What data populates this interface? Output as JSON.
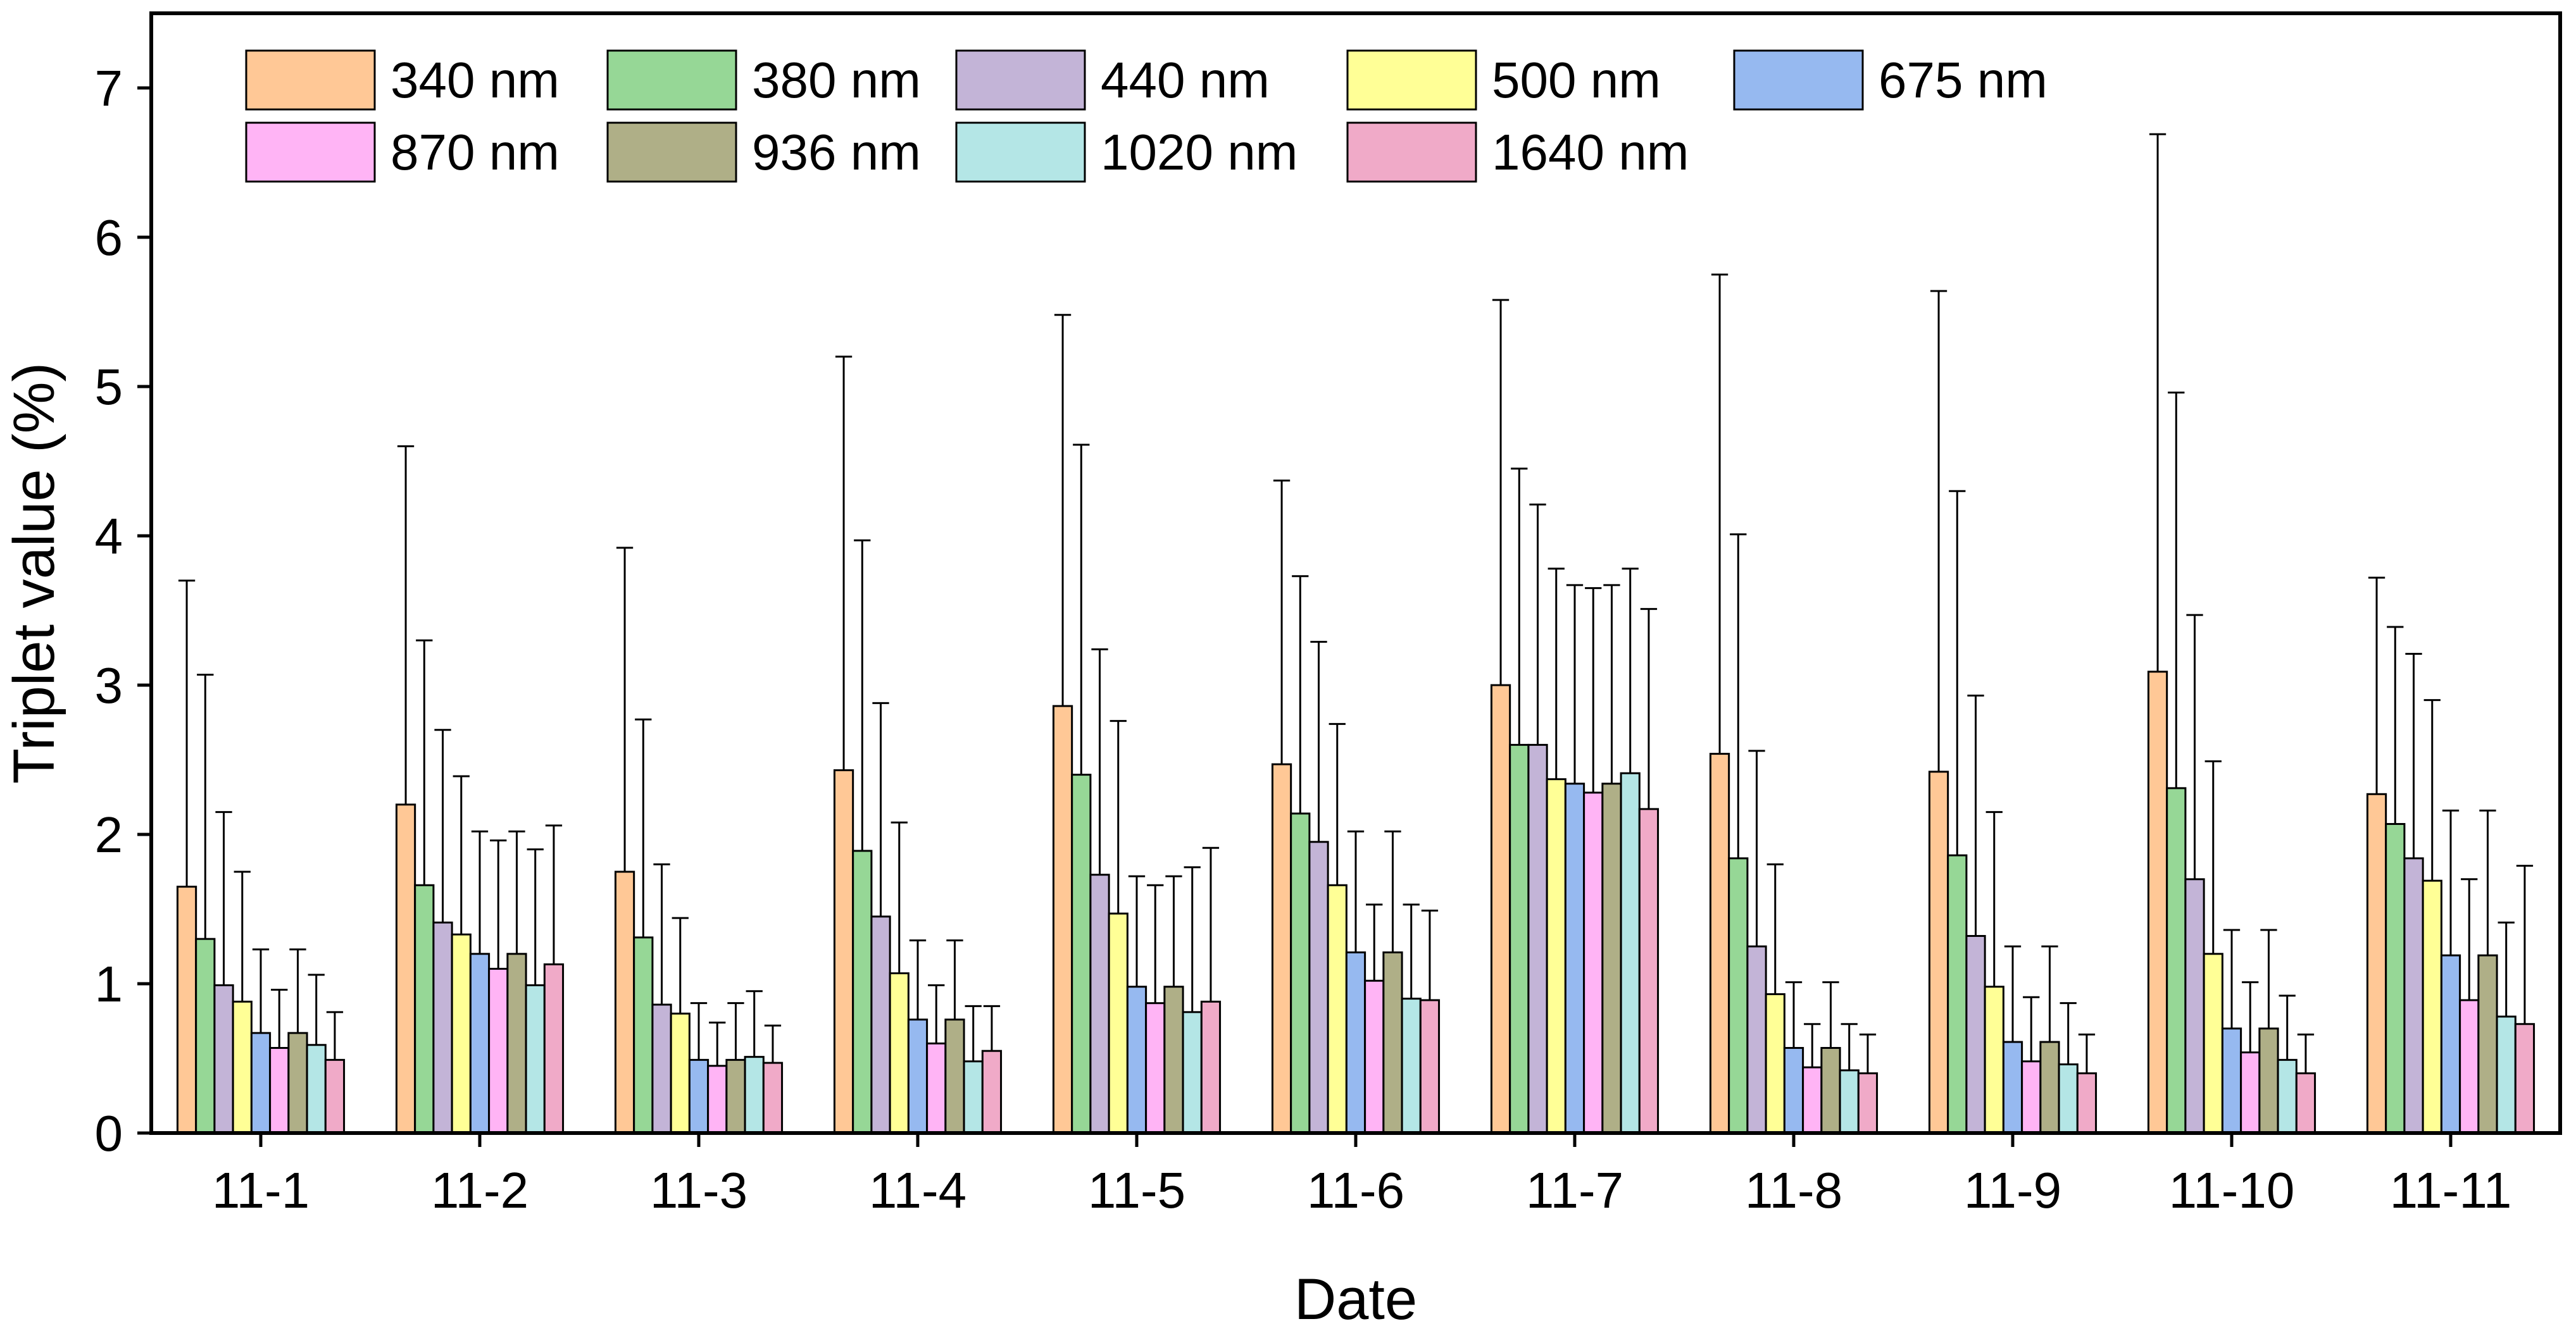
{
  "chart_data": {
    "type": "bar",
    "title": "",
    "xlabel": "Date",
    "ylabel": "Triplet value (%)",
    "ylim": [
      0,
      7.5
    ],
    "yticks": [
      0,
      1,
      2,
      3,
      4,
      5,
      6,
      7
    ],
    "grid": false,
    "legend_placement": "top-left",
    "error_bars": "upper (value shown is top of error bar)",
    "categories": [
      "11-1",
      "11-2",
      "11-3",
      "11-4",
      "11-5",
      "11-6",
      "11-7",
      "11-8",
      "11-9",
      "11-10",
      "11-11"
    ],
    "series": [
      {
        "name": "340 nm",
        "color": "#FFC896",
        "values": [
          1.65,
          2.2,
          1.75,
          2.43,
          2.86,
          2.47,
          3.0,
          2.54,
          2.42,
          3.09,
          2.27
        ],
        "err_top": [
          3.7,
          4.6,
          3.92,
          5.2,
          5.48,
          4.37,
          5.58,
          5.75,
          5.64,
          6.69,
          3.72
        ]
      },
      {
        "name": "380 nm",
        "color": "#96D796",
        "values": [
          1.3,
          1.66,
          1.31,
          1.89,
          2.4,
          2.14,
          2.6,
          1.84,
          1.86,
          2.31,
          2.07
        ],
        "err_top": [
          3.07,
          3.3,
          2.77,
          3.97,
          4.61,
          3.73,
          4.45,
          4.01,
          4.3,
          4.96,
          3.39
        ]
      },
      {
        "name": "440 nm",
        "color": "#C3B4D7",
        "values": [
          0.99,
          1.41,
          0.86,
          1.45,
          1.73,
          1.95,
          2.6,
          1.25,
          1.32,
          1.7,
          1.84
        ],
        "err_top": [
          2.15,
          2.7,
          1.8,
          2.88,
          3.24,
          3.29,
          4.21,
          2.56,
          2.93,
          3.47,
          3.21
        ]
      },
      {
        "name": "500 nm",
        "color": "#FFFF96",
        "values": [
          0.88,
          1.33,
          0.8,
          1.07,
          1.47,
          1.66,
          2.37,
          0.93,
          0.98,
          1.2,
          1.69
        ],
        "err_top": [
          1.75,
          2.39,
          1.44,
          2.08,
          2.76,
          2.74,
          3.78,
          1.8,
          2.15,
          2.49,
          2.9
        ]
      },
      {
        "name": "675 nm",
        "color": "#96B9F0",
        "values": [
          0.67,
          1.2,
          0.49,
          0.76,
          0.98,
          1.21,
          2.34,
          0.57,
          0.61,
          0.7,
          1.19
        ],
        "err_top": [
          1.23,
          2.02,
          0.87,
          1.29,
          1.72,
          2.02,
          3.67,
          1.01,
          1.25,
          1.36,
          2.16
        ]
      },
      {
        "name": "870 nm",
        "color": "#FFB4F5",
        "values": [
          0.57,
          1.1,
          0.45,
          0.6,
          0.87,
          1.02,
          2.28,
          0.44,
          0.48,
          0.54,
          0.89
        ],
        "err_top": [
          0.96,
          1.96,
          0.74,
          0.99,
          1.66,
          1.53,
          3.65,
          0.73,
          0.91,
          1.01,
          1.7
        ]
      },
      {
        "name": "936 nm",
        "color": "#AFAF87",
        "values": [
          0.67,
          1.2,
          0.49,
          0.76,
          0.98,
          1.21,
          2.34,
          0.57,
          0.61,
          0.7,
          1.19
        ],
        "err_top": [
          1.23,
          2.02,
          0.87,
          1.29,
          1.72,
          2.02,
          3.67,
          1.01,
          1.25,
          1.36,
          2.16
        ]
      },
      {
        "name": "1020 nm",
        "color": "#B4E6E6",
        "values": [
          0.59,
          0.99,
          0.51,
          0.48,
          0.81,
          0.9,
          2.41,
          0.42,
          0.46,
          0.49,
          0.78
        ],
        "err_top": [
          1.06,
          1.9,
          0.95,
          0.85,
          1.78,
          1.53,
          3.78,
          0.73,
          0.87,
          0.92,
          1.41
        ]
      },
      {
        "name": "1640 nm",
        "color": "#F0AAC8",
        "values": [
          0.49,
          1.13,
          0.47,
          0.55,
          0.88,
          0.89,
          2.17,
          0.4,
          0.4,
          0.4,
          0.73
        ],
        "err_top": [
          0.81,
          2.06,
          0.72,
          0.85,
          1.91,
          1.49,
          3.51,
          0.66,
          0.66,
          0.66,
          1.79
        ]
      }
    ]
  }
}
